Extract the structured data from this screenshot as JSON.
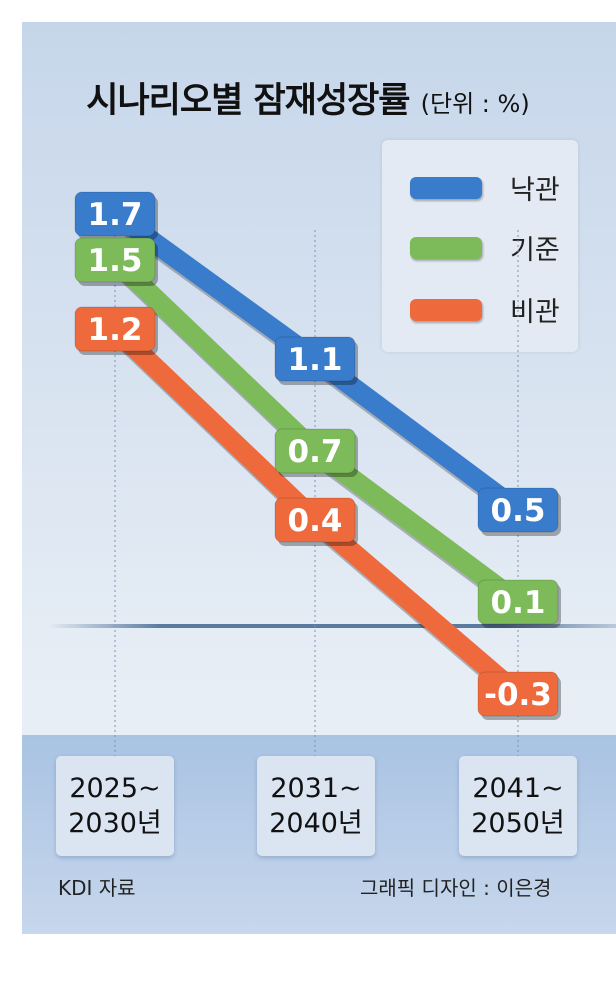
{
  "chart_data": {
    "type": "line",
    "title": "시나리오별 잠재성장률",
    "unit_label": "(단위 : %)",
    "categories": [
      "2025~\n2030년",
      "2031~\n2040년",
      "2041~\n2050년"
    ],
    "category_lines": [
      [
        "2025~",
        "2030년"
      ],
      [
        "2031~",
        "2040년"
      ],
      [
        "2041~",
        "2050년"
      ]
    ],
    "series": [
      {
        "name": "낙관",
        "color": "#3a7ccc",
        "values": [
          1.7,
          1.1,
          0.5
        ]
      },
      {
        "name": "기준",
        "color": "#7cba5a",
        "values": [
          1.5,
          0.7,
          0.1
        ]
      },
      {
        "name": "비관",
        "color": "#ee6a3c",
        "values": [
          1.2,
          0.4,
          -0.3
        ]
      }
    ],
    "legend_position": "top-right",
    "grid": false
  },
  "footer": {
    "source": "KDI 자료",
    "credit": "그래픽 디자인 : 이은경"
  }
}
